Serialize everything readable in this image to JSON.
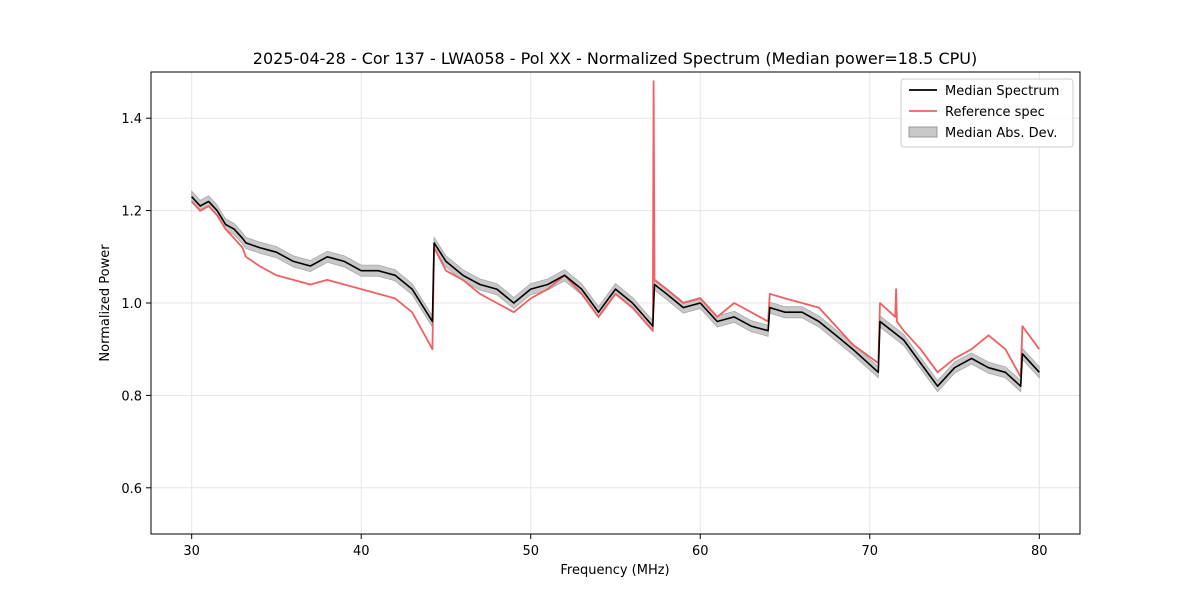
{
  "chart_data": {
    "type": "line",
    "title": "2025-04-28 - Cor 137 - LWA058 - Pol XX - Normalized Spectrum (Median power=18.5 CPU)",
    "xlabel": "Frequency (MHz)",
    "ylabel": "Normalized Power",
    "xlim": [
      27.6,
      82.4
    ],
    "ylim": [
      0.5,
      1.5
    ],
    "xticks": [
      30,
      40,
      50,
      60,
      70,
      80
    ],
    "yticks": [
      0.6,
      0.8,
      1.0,
      1.2,
      1.4
    ],
    "grid": true,
    "legend_position": "top-right",
    "series": [
      {
        "name": "Median Spectrum",
        "color": "#000000",
        "x": [
          30.0,
          30.5,
          31.0,
          31.5,
          32.0,
          32.5,
          33.0,
          33.2,
          34.0,
          35.0,
          36.0,
          37.0,
          38.0,
          39.0,
          40.0,
          41.0,
          42.0,
          43.0,
          44.2,
          44.3,
          45.0,
          46.0,
          47.0,
          48.0,
          49.0,
          50.0,
          51.0,
          52.0,
          53.0,
          54.0,
          55.0,
          56.0,
          57.2,
          57.3,
          58.0,
          59.0,
          60.0,
          61.0,
          62.0,
          63.0,
          64.0,
          64.1,
          65.0,
          66.0,
          67.0,
          68.0,
          69.0,
          70.5,
          70.6,
          72.0,
          73.0,
          74.0,
          75.0,
          76.0,
          77.0,
          78.0,
          78.9,
          79.0,
          80.0
        ],
        "values": [
          1.23,
          1.21,
          1.22,
          1.2,
          1.17,
          1.16,
          1.14,
          1.13,
          1.12,
          1.11,
          1.09,
          1.08,
          1.1,
          1.09,
          1.07,
          1.07,
          1.06,
          1.03,
          0.96,
          1.13,
          1.09,
          1.06,
          1.04,
          1.03,
          1.0,
          1.03,
          1.04,
          1.06,
          1.03,
          0.98,
          1.03,
          1.0,
          0.95,
          1.04,
          1.02,
          0.99,
          1.0,
          0.96,
          0.97,
          0.95,
          0.94,
          0.99,
          0.98,
          0.98,
          0.96,
          0.93,
          0.9,
          0.85,
          0.96,
          0.92,
          0.87,
          0.82,
          0.86,
          0.88,
          0.86,
          0.85,
          0.82,
          0.89,
          0.85
        ]
      },
      {
        "name": "Reference spec",
        "color": "#f06060",
        "x": [
          30.0,
          30.5,
          31.0,
          31.5,
          32.0,
          32.5,
          33.0,
          33.2,
          34.0,
          35.0,
          36.0,
          37.0,
          38.0,
          39.0,
          40.0,
          41.0,
          42.0,
          43.0,
          44.2,
          44.3,
          45.0,
          46.0,
          47.0,
          48.0,
          49.0,
          50.0,
          51.0,
          52.0,
          53.0,
          54.0,
          55.0,
          56.0,
          57.2,
          57.25,
          57.3,
          58.0,
          59.0,
          60.0,
          61.0,
          62.0,
          63.0,
          64.0,
          64.1,
          65.0,
          66.0,
          67.0,
          68.0,
          69.0,
          70.5,
          70.6,
          71.5,
          71.55,
          71.6,
          72.0,
          73.0,
          74.0,
          75.0,
          76.0,
          77.0,
          78.0,
          78.9,
          79.0,
          80.0
        ],
        "values": [
          1.22,
          1.2,
          1.21,
          1.19,
          1.16,
          1.14,
          1.12,
          1.1,
          1.08,
          1.06,
          1.05,
          1.04,
          1.05,
          1.04,
          1.03,
          1.02,
          1.01,
          0.98,
          0.9,
          1.12,
          1.07,
          1.05,
          1.02,
          1.0,
          0.98,
          1.01,
          1.03,
          1.06,
          1.02,
          0.97,
          1.02,
          0.99,
          0.94,
          1.48,
          1.05,
          1.03,
          1.0,
          1.01,
          0.97,
          1.0,
          0.98,
          0.96,
          1.02,
          1.01,
          1.0,
          0.99,
          0.95,
          0.91,
          0.87,
          1.0,
          0.97,
          1.03,
          0.96,
          0.94,
          0.9,
          0.85,
          0.88,
          0.9,
          0.93,
          0.9,
          0.84,
          0.95,
          0.9
        ]
      },
      {
        "name": "Median Abs. Dev.",
        "color": "#b0b0b0",
        "type": "band",
        "halfwidth": 0.012
      }
    ]
  }
}
